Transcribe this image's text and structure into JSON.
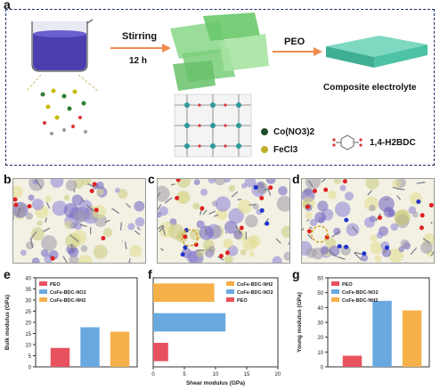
{
  "panel_labels": {
    "a": "a",
    "b": "b",
    "c": "c",
    "d": "d",
    "e": "e",
    "f": "f",
    "g": "g"
  },
  "panel_a": {
    "stirring": "Stirring",
    "time": "12 h",
    "peo": "PEO",
    "composite": "Composite electrolyte",
    "legend_co": "Co(NO3)2",
    "legend_fe": "FeCl3",
    "legend_bdc": "1,4-H2BDC"
  },
  "colors": {
    "peo": "#e8525f",
    "no2": "#6aa9e0",
    "nh2": "#f6b04a",
    "frame": "#1b2a6b",
    "sheet": "#7ecf7f",
    "electrolyte": "#55c4a6"
  },
  "chart_data": [
    {
      "type": "bar",
      "panel": "e",
      "ylabel": "Bulk modulus (GPa)",
      "ylim": [
        0,
        40
      ],
      "yticks": [
        0,
        5,
        10,
        15,
        20,
        25,
        30,
        35,
        40
      ],
      "legend": [
        "PEO",
        "CoFe-BDC-NO2",
        "CoFe-BDC-NH2"
      ],
      "categories": [
        "PEO",
        "CoFe-BDC-NO2",
        "CoFe-BDC-NH2"
      ],
      "values": [
        8.5,
        17.8,
        15.8
      ]
    },
    {
      "type": "bar",
      "orientation": "horizontal",
      "panel": "f",
      "xlabel": "Shear modulus (GPa)",
      "xlim": [
        0,
        20
      ],
      "xticks": [
        0,
        5,
        10,
        15,
        20
      ],
      "legend": [
        "CoFe-BDC-NH2",
        "CoFe-BDC-NO2",
        "PEO"
      ],
      "categories": [
        "CoFe-BDC-NH2",
        "CoFe-BDC-NO2",
        "PEO"
      ],
      "values": [
        9.8,
        11.6,
        2.4
      ]
    },
    {
      "type": "bar",
      "panel": "g",
      "ylabel": "Young modulus (GPa)",
      "ylim": [
        0,
        60
      ],
      "yticks": [
        0,
        10,
        20,
        30,
        40,
        50,
        60
      ],
      "legend": [
        "PEO",
        "CoFe-BDC-NO2",
        "CoFe-BDC-NH2"
      ],
      "categories": [
        "PEO",
        "CoFe-BDC-NO2",
        "CoFe-BDC-NH2"
      ],
      "values": [
        7.5,
        44.5,
        38
      ]
    }
  ]
}
